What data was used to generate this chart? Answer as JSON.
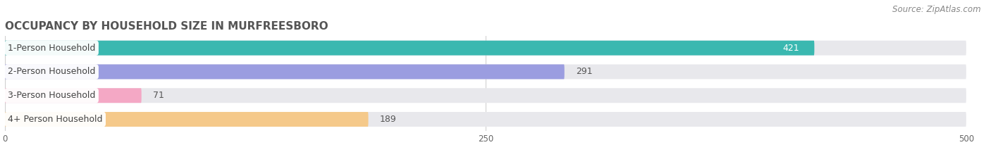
{
  "title": "OCCUPANCY BY HOUSEHOLD SIZE IN MURFREESBORO",
  "source": "Source: ZipAtlas.com",
  "categories": [
    "1-Person Household",
    "2-Person Household",
    "3-Person Household",
    "4+ Person Household"
  ],
  "values": [
    421,
    291,
    71,
    189
  ],
  "bar_colors": [
    "#3ab8b0",
    "#9b9de0",
    "#f4a8c5",
    "#f5c98a"
  ],
  "bar_bg_color": "#e8e8ec",
  "xlim": [
    0,
    500
  ],
  "xticks": [
    0,
    250,
    500
  ],
  "title_fontsize": 11,
  "label_fontsize": 9,
  "value_fontsize": 9,
  "source_fontsize": 8.5,
  "bar_height": 0.62,
  "background_color": "#ffffff",
  "label_pill_color": "#ffffff",
  "value_color_on_bar": "#ffffff",
  "value_color_off_bar": "#555555"
}
